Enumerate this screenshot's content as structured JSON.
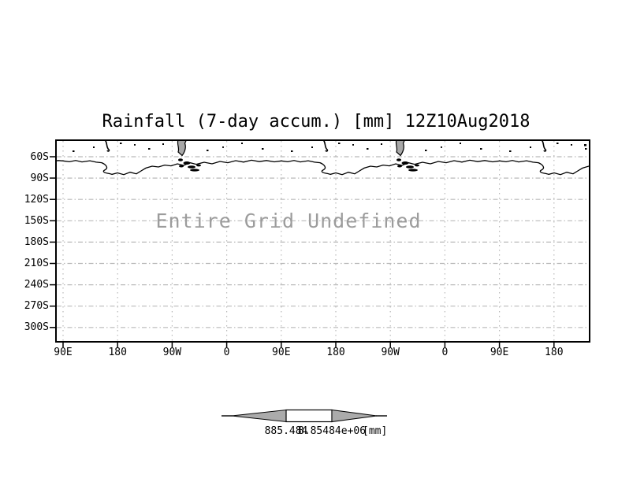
{
  "title": "Rainfall (7-day accum.) [mm] 12Z10Aug2018",
  "plot": {
    "undefined_message": "Entire Grid Undefined",
    "y_axis": {
      "labels": [
        "60S",
        "90S",
        "120S",
        "150S",
        "180S",
        "210S",
        "240S",
        "270S",
        "300S"
      ]
    },
    "x_axis": {
      "labels": [
        "90E",
        "180",
        "90W",
        "0",
        "90E",
        "180",
        "90W",
        "0",
        "90E",
        "180"
      ]
    }
  },
  "colorbar": {
    "min_label": "885.484",
    "max_label": "8.85484e+06",
    "units_label": "[mm]"
  },
  "colors": {
    "background": "#ffffff",
    "foreground": "#000000",
    "grid": "#b9b9b9",
    "undefined_text": "#9c9c9c",
    "colorbar_fill": "#ababab",
    "land_fill": "#a8a8a8"
  },
  "chart_data": {
    "type": "heatmap",
    "title": "Rainfall (7-day accum.) [mm] 12Z10Aug2018",
    "variable": "Rainfall (7-day accum.)",
    "units": "mm",
    "valid_time": "12Z10Aug2018",
    "status_message": "Entire Grid Undefined",
    "x_tick_labels": [
      "90E",
      "180",
      "90W",
      "0",
      "90E",
      "180",
      "90W",
      "0",
      "90E",
      "180"
    ],
    "y_tick_labels": [
      "60S",
      "90S",
      "120S",
      "150S",
      "180S",
      "210S",
      "240S",
      "270S",
      "300S"
    ],
    "values": [],
    "grid": true,
    "legend_position": "bottom",
    "colorbar_tick_labels": [
      "885.484",
      "8.85484e+06"
    ],
    "colorbar_units": "[mm]"
  }
}
